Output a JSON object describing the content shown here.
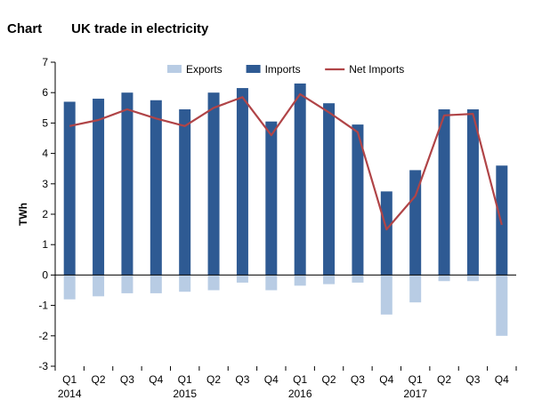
{
  "header": {
    "label": "Chart",
    "title": "UK trade in electricity"
  },
  "chart_data": {
    "type": "bar",
    "categories": [
      "Q1",
      "Q2",
      "Q3",
      "Q4",
      "Q1",
      "Q2",
      "Q3",
      "Q4",
      "Q1",
      "Q2",
      "Q3",
      "Q4",
      "Q1",
      "Q2",
      "Q3",
      "Q4"
    ],
    "years": [
      {
        "label": "2014",
        "index": 0
      },
      {
        "label": "2015",
        "index": 4
      },
      {
        "label": "2016",
        "index": 8
      },
      {
        "label": "2017",
        "index": 12
      }
    ],
    "series": [
      {
        "name": "Exports",
        "type": "bar",
        "color": "#b8cce4",
        "values": [
          -0.8,
          -0.7,
          -0.6,
          -0.6,
          -0.55,
          -0.5,
          -0.25,
          -0.5,
          -0.35,
          -0.3,
          -0.25,
          -1.3,
          -0.9,
          -0.2,
          -0.2,
          -2.0
        ]
      },
      {
        "name": "Imports",
        "type": "bar",
        "color": "#2e5a93",
        "values": [
          5.7,
          5.8,
          6.0,
          5.75,
          5.45,
          6.0,
          6.15,
          5.05,
          6.3,
          5.65,
          4.95,
          2.75,
          3.45,
          5.45,
          5.45,
          3.6
        ]
      },
      {
        "name": "Net Imports",
        "type": "line",
        "color": "#b04447",
        "values": [
          4.9,
          5.1,
          5.45,
          5.15,
          4.9,
          5.5,
          5.85,
          4.6,
          5.95,
          5.35,
          4.7,
          1.5,
          2.6,
          5.25,
          5.3,
          1.65
        ]
      }
    ],
    "xlabel": "",
    "ylabel": "TWh",
    "ylim": [
      -3,
      7
    ],
    "yticks": [
      "-3",
      "-2",
      "-1",
      "0",
      "1",
      "2",
      "3",
      "4",
      "5",
      "6",
      "7"
    ],
    "legend": "top",
    "grid": false
  }
}
